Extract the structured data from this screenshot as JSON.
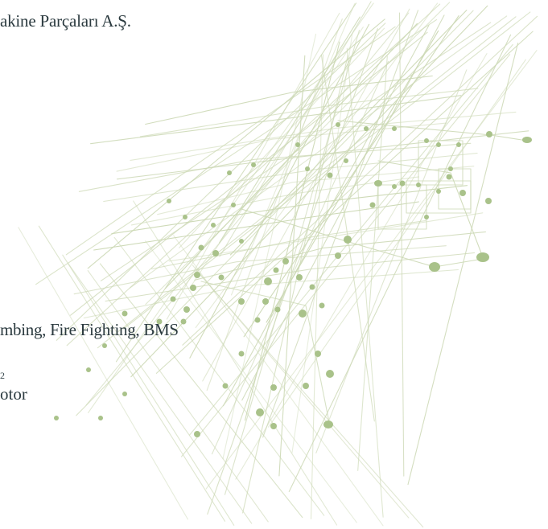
{
  "document": {
    "company_name_fragment": "akine Parçaları A.Ş.",
    "services_fragment": "mbing, Fire Fighting, BMS",
    "footnote_fragment": "2",
    "product_fragment": "otor"
  },
  "colors": {
    "text": "#2b3a3f",
    "circuit_line": "#c9d7b0",
    "circuit_node": "#a9c28a"
  },
  "decor": {
    "background_graphic": "circuit-lines-graphic"
  }
}
